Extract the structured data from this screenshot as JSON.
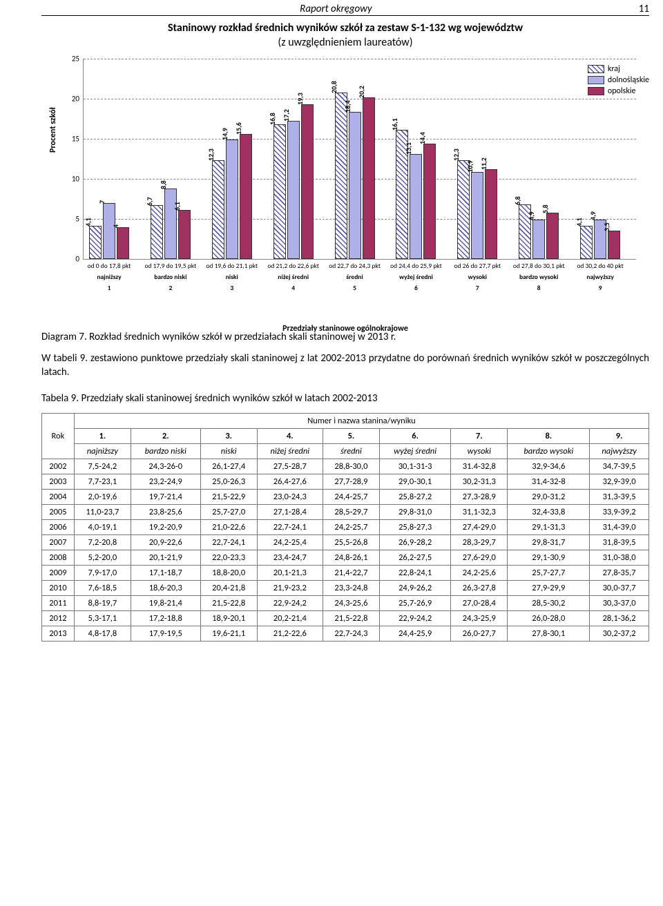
{
  "header": {
    "title": "Raport okręgowy",
    "page": "11"
  },
  "chart": {
    "type": "bar",
    "title": "Staninowy rozkład średnich wyników szkół za zestaw S-1-132 wg województw",
    "subtitle": "(z uwzględnieniem laureatów)",
    "ylabel": "Procent szkół",
    "xlabel": "Przedziały staninowe ogólnokrajowe",
    "ylim": [
      0,
      25
    ],
    "ytick_step": 5,
    "grid_color": "#888888",
    "series": [
      {
        "name": "kraj",
        "style": "hatched"
      },
      {
        "name": "dolnośląskie",
        "style": "blue",
        "color": "#b0b0e8"
      },
      {
        "name": "opolskie",
        "style": "maroon",
        "color": "#a03060"
      }
    ],
    "categories": [
      {
        "range": "od 0 do 17,8 pkt",
        "name": "najniższy",
        "num": "1",
        "values": [
          4.1,
          7.0,
          4.0
        ]
      },
      {
        "range": "od 17,9 do 19,5 pkt",
        "name": "bardzo niski",
        "num": "2",
        "values": [
          6.7,
          8.8,
          6.1
        ]
      },
      {
        "range": "od 19,6 do 21,1 pkt",
        "name": "niski",
        "num": "3",
        "values": [
          12.3,
          14.9,
          15.6
        ]
      },
      {
        "range": "od 21,2 do 22,6 pkt",
        "name": "niżej średni",
        "num": "4",
        "values": [
          16.8,
          17.2,
          19.3
        ]
      },
      {
        "range": "od 22,7 do 24,3 pkt",
        "name": "średni",
        "num": "5",
        "values": [
          20.8,
          18.4,
          20.2
        ]
      },
      {
        "range": "od 24,4 do 25,9 pkt",
        "name": "wyżej średni",
        "num": "6",
        "values": [
          16.1,
          13.1,
          14.4
        ]
      },
      {
        "range": "od 26 do 27,7 pkt",
        "name": "wysoki",
        "num": "7",
        "values": [
          12.3,
          10.9,
          11.2
        ]
      },
      {
        "range": "od 27,8 do 30,1 pkt",
        "name": "bardzo wysoki",
        "num": "8",
        "values": [
          6.8,
          4.9,
          5.8
        ]
      },
      {
        "range": "od 30,2 do 40 pkt",
        "name": "najwyższy",
        "num": "9",
        "values": [
          4.1,
          4.9,
          3.5
        ]
      }
    ]
  },
  "diagram_caption": "Diagram 7. Rozkład średnich wyników szkół w przedziałach skali staninowej w 2013 r.",
  "paragraph": "W tabeli 9. zestawiono punktowe przedziały skali staninowej z lat 2002-2013 przydatne do porównań średnich wyników szkół w poszczególnych latach.",
  "table_caption": "Tabela 9. Przedziały skali staninowej średnich wyników szkół w latach 2002-2013",
  "table": {
    "header_main": "Numer i nazwa stanina/wyniku",
    "col_rok": "Rok",
    "nums": [
      "1.",
      "2.",
      "3.",
      "4.",
      "5.",
      "6.",
      "7.",
      "8.",
      "9."
    ],
    "names": [
      "najniższy",
      "bardzo niski",
      "niski",
      "niżej średni",
      "średni",
      "wyżej średni",
      "wysoki",
      "bardzo wysoki",
      "najwyższy"
    ],
    "rows": [
      [
        "2002",
        "7,5-24,2",
        "24,3-26-0",
        "26,1-27,4",
        "27,5-28,7",
        "28,8-30,0",
        "30,1-31-3",
        "31.4-32,8",
        "32,9-34,6",
        "34,7-39,5"
      ],
      [
        "2003",
        "7,7-23,1",
        "23,2-24,9",
        "25,0-26,3",
        "26,4-27,6",
        "27,7-28,9",
        "29,0-30,1",
        "30,2-31,3",
        "31,4-32-8",
        "32,9-39,0"
      ],
      [
        "2004",
        "2,0-19,6",
        "19,7-21,4",
        "21,5-22,9",
        "23,0-24,3",
        "24,4-25,7",
        "25,8-27,2",
        "27,3-28,9",
        "29,0-31,2",
        "31,3-39,5"
      ],
      [
        "2005",
        "11,0-23,7",
        "23,8-25,6",
        "25,7-27,0",
        "27,1-28,4",
        "28,5-29,7",
        "29,8-31,0",
        "31,1-32,3",
        "32,4-33,8",
        "33,9-39,2"
      ],
      [
        "2006",
        "4,0-19,1",
        "19,2-20,9",
        "21,0-22,6",
        "22,7-24,1",
        "24,2-25,7",
        "25,8-27,3",
        "27,4-29,0",
        "29,1-31,3",
        "31,4-39,0"
      ],
      [
        "2007",
        "7,2-20,8",
        "20,9-22,6",
        "22,7-24,1",
        "24,2-25,4",
        "25,5-26,8",
        "26,9-28,2",
        "28,3-29,7",
        "29,8-31,7",
        "31,8-39,5"
      ],
      [
        "2008",
        "5,2-20,0",
        "20,1-21,9",
        "22,0-23,3",
        "23,4-24,7",
        "24,8-26,1",
        "26,2-27,5",
        "27,6-29,0",
        "29,1-30,9",
        "31,0-38,0"
      ],
      [
        "2009",
        "7,9-17,0",
        "17,1-18,7",
        "18,8-20,0",
        "20,1-21,3",
        "21,4-22,7",
        "22,8-24,1",
        "24,2-25,6",
        "25,7-27,7",
        "27,8-35,7"
      ],
      [
        "2010",
        "7,6-18,5",
        "18,6-20,3",
        "20,4-21,8",
        "21,9-23,2",
        "23,3-24,8",
        "24,9-26,2",
        "26,3-27,8",
        "27,9-29,9",
        "30,0-37,7"
      ],
      [
        "2011",
        "8,8-19,7",
        "19,8-21,4",
        "21,5-22,8",
        "22,9-24,2",
        "24,3-25,6",
        "25,7-26,9",
        "27,0-28,4",
        "28,5-30,2",
        "30,3-37,0"
      ],
      [
        "2012",
        "5,3-17,1",
        "17,2-18,8",
        "18,9-20,1",
        "20,2-21,4",
        "21,5-22,8",
        "22,9-24,2",
        "24,3-25,9",
        "26,0-28,0",
        "28,1-36,2"
      ],
      [
        "2013",
        "4,8-17,8",
        "17,9-19,5",
        "19,6-21,1",
        "21,2-22,6",
        "22,7-24,3",
        "24,4-25,9",
        "26,0-27,7",
        "27,8-30,1",
        "30,2-37,2"
      ]
    ]
  }
}
